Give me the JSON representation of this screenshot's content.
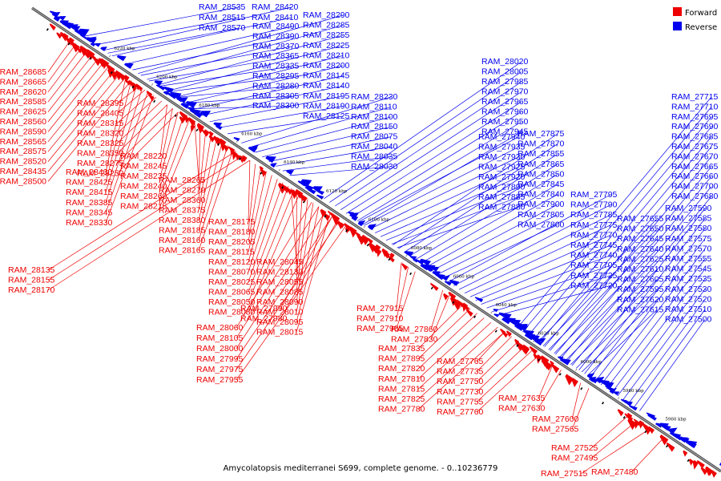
{
  "caption": "Amycolatopsis mediterranei S699, complete genome. - 0..10236779",
  "legend": [
    {
      "label": "Forward",
      "color": "#ee0000"
    },
    {
      "label": "Reverse",
      "color": "#0000ee"
    }
  ],
  "colors": {
    "forward": "#ee0000",
    "reverse": "#0000ee",
    "axis": "#555555"
  },
  "kbp_ticks": [
    {
      "label": "6220 kbp",
      "kbp": 6220
    },
    {
      "label": "6200 kbp",
      "kbp": 6200
    },
    {
      "label": "6180 kbp",
      "kbp": 6180
    },
    {
      "label": "6160 kbp",
      "kbp": 6160
    },
    {
      "label": "6140 kbp",
      "kbp": 6140
    },
    {
      "label": "6120 kbp",
      "kbp": 6120
    },
    {
      "label": "6100 kbp",
      "kbp": 6100
    },
    {
      "label": "6080 kbp",
      "kbp": 6080
    },
    {
      "label": "6060 kbp",
      "kbp": 6060
    },
    {
      "label": "6040 kbp",
      "kbp": 6040
    },
    {
      "label": "6020 kbp",
      "kbp": 6020
    },
    {
      "label": "6000 kbp",
      "kbp": 6000
    },
    {
      "label": "5980 kbp",
      "kbp": 5980
    },
    {
      "label": "5960 kbp",
      "kbp": 5960
    }
  ],
  "reverse_genes": [
    {
      "label": "RAM_28535"
    },
    {
      "label": "RAM_28515"
    },
    {
      "label": "RAM_28570"
    },
    {
      "label": "RAM_28420"
    },
    {
      "label": "RAM_28410"
    },
    {
      "label": "RAM_28490"
    },
    {
      "label": "RAM_28390"
    },
    {
      "label": "RAM_28370"
    },
    {
      "label": "RAM_28365"
    },
    {
      "label": "RAM_28335"
    },
    {
      "label": "RAM_28295"
    },
    {
      "label": "RAM_28280"
    },
    {
      "label": "RAM_28305"
    },
    {
      "label": "RAM_28300"
    },
    {
      "label": "RAM_28290"
    },
    {
      "label": "RAM_28285"
    },
    {
      "label": "RAM_28255"
    },
    {
      "label": "RAM_28225"
    },
    {
      "label": "RAM_28210"
    },
    {
      "label": "RAM_28200"
    },
    {
      "label": "RAM_28145"
    },
    {
      "label": "RAM_28140"
    },
    {
      "label": "RAM_28195"
    },
    {
      "label": "RAM_28190"
    },
    {
      "label": "RAM_28125"
    },
    {
      "label": "RAM_28230"
    },
    {
      "label": "RAM_28110"
    },
    {
      "label": "RAM_28100"
    },
    {
      "label": "RAM_28150"
    },
    {
      "label": "RAM_28075"
    },
    {
      "label": "RAM_28040"
    },
    {
      "label": "RAM_28035"
    },
    {
      "label": "RAM_28030"
    },
    {
      "label": "RAM_28020"
    },
    {
      "label": "RAM_28005"
    },
    {
      "label": "RAM_27985"
    },
    {
      "label": "RAM_27970"
    },
    {
      "label": "RAM_27965"
    },
    {
      "label": "RAM_27960"
    },
    {
      "label": "RAM_27950"
    },
    {
      "label": "RAM_27945"
    },
    {
      "label": "RAM_27940"
    },
    {
      "label": "RAM_27935"
    },
    {
      "label": "RAM_27930"
    },
    {
      "label": "RAM_27925"
    },
    {
      "label": "RAM_27920"
    },
    {
      "label": "RAM_27890"
    },
    {
      "label": "RAM_27885"
    },
    {
      "label": "RAM_27880"
    },
    {
      "label": "RAM_27875"
    },
    {
      "label": "RAM_27870"
    },
    {
      "label": "RAM_27855"
    },
    {
      "label": "RAM_27865"
    },
    {
      "label": "RAM_27850"
    },
    {
      "label": "RAM_27845"
    },
    {
      "label": "RAM_27840"
    },
    {
      "label": "RAM_27900"
    },
    {
      "label": "RAM_27805"
    },
    {
      "label": "RAM_27800"
    },
    {
      "label": "RAM_27795"
    },
    {
      "label": "RAM_27790"
    },
    {
      "label": "RAM_27785"
    },
    {
      "label": "RAM_27775"
    },
    {
      "label": "RAM_27770"
    },
    {
      "label": "RAM_27745"
    },
    {
      "label": "RAM_27740"
    },
    {
      "label": "RAM_27705"
    },
    {
      "label": "RAM_27725"
    },
    {
      "label": "RAM_27720"
    },
    {
      "label": "RAM_27715"
    },
    {
      "label": "RAM_27710"
    },
    {
      "label": "RAM_27695"
    },
    {
      "label": "RAM_27690"
    },
    {
      "label": "RAM_27685"
    },
    {
      "label": "RAM_27675"
    },
    {
      "label": "RAM_27670"
    },
    {
      "label": "RAM_27665"
    },
    {
      "label": "RAM_27660"
    },
    {
      "label": "RAM_27700"
    },
    {
      "label": "RAM_27680"
    },
    {
      "label": "RAM_27655"
    },
    {
      "label": "RAM_27650"
    },
    {
      "label": "RAM_27645"
    },
    {
      "label": "RAM_27640"
    },
    {
      "label": "RAM_27625"
    },
    {
      "label": "RAM_27610"
    },
    {
      "label": "RAM_27605"
    },
    {
      "label": "RAM_27595"
    },
    {
      "label": "RAM_27620"
    },
    {
      "label": "RAM_27615"
    },
    {
      "label": "RAM_27590"
    },
    {
      "label": "RAM_27585"
    },
    {
      "label": "RAM_27580"
    },
    {
      "label": "RAM_27575"
    },
    {
      "label": "RAM_27570"
    },
    {
      "label": "RAM_27555"
    },
    {
      "label": "RAM_27545"
    },
    {
      "label": "RAM_27535"
    },
    {
      "label": "RAM_27530"
    },
    {
      "label": "RAM_27520"
    },
    {
      "label": "RAM_27510"
    },
    {
      "label": "RAM_27500"
    }
  ],
  "forward_genes_left": [
    {
      "label": "RAM_28685"
    },
    {
      "label": "RAM_28665"
    },
    {
      "label": "RAM_28620"
    },
    {
      "label": "RAM_28585"
    },
    {
      "label": "RAM_28625"
    },
    {
      "label": "RAM_28560"
    },
    {
      "label": "RAM_28590"
    },
    {
      "label": "RAM_28565"
    },
    {
      "label": "RAM_28575"
    },
    {
      "label": "RAM_28520"
    },
    {
      "label": "RAM_28435"
    },
    {
      "label": "RAM_28500"
    },
    {
      "label": "RAM_28430"
    },
    {
      "label": "RAM_28425"
    },
    {
      "label": "RAM_28415"
    },
    {
      "label": "RAM_28385"
    },
    {
      "label": "RAM_28345"
    },
    {
      "label": "RAM_28330"
    },
    {
      "label": "RAM_28395"
    },
    {
      "label": "RAM_28405"
    },
    {
      "label": "RAM_28315"
    },
    {
      "label": "RAM_28320"
    },
    {
      "label": "RAM_28325"
    },
    {
      "label": "RAM_28350"
    },
    {
      "label": "RAM_28275"
    },
    {
      "label": "RAM_28250"
    },
    {
      "label": "RAM_28220"
    },
    {
      "label": "RAM_28245"
    },
    {
      "label": "RAM_28235"
    },
    {
      "label": "RAM_28240"
    },
    {
      "label": "RAM_28260"
    },
    {
      "label": "RAM_28215"
    },
    {
      "label": "RAM_28265"
    },
    {
      "label": "RAM_28270"
    },
    {
      "label": "RAM_28360"
    },
    {
      "label": "RAM_28375"
    },
    {
      "label": "RAM_28380"
    },
    {
      "label": "RAM_28185"
    },
    {
      "label": "RAM_28160"
    },
    {
      "label": "RAM_28165"
    },
    {
      "label": "RAM_28135"
    },
    {
      "label": "RAM_28155"
    },
    {
      "label": "RAM_28170"
    },
    {
      "label": "RAM_28175"
    },
    {
      "label": "RAM_28180"
    },
    {
      "label": "RAM_28205"
    },
    {
      "label": "RAM_28115"
    },
    {
      "label": "RAM_28120"
    },
    {
      "label": "RAM_28070"
    },
    {
      "label": "RAM_28025"
    },
    {
      "label": "RAM_28065"
    },
    {
      "label": "RAM_28050"
    },
    {
      "label": "RAM_28080"
    },
    {
      "label": "RAM_28045"
    },
    {
      "label": "RAM_28130"
    },
    {
      "label": "RAM_28055"
    },
    {
      "label": "RAM_28085"
    },
    {
      "label": "RAM_28090"
    },
    {
      "label": "RAM_28010"
    },
    {
      "label": "RAM_28095"
    },
    {
      "label": "RAM_28015"
    },
    {
      "label": "RAM_28060"
    },
    {
      "label": "RAM_28105"
    },
    {
      "label": "RAM_28000"
    },
    {
      "label": "RAM_27995"
    },
    {
      "label": "RAM_27975"
    },
    {
      "label": "RAM_27955"
    },
    {
      "label": "RAM_27990"
    },
    {
      "label": "RAM_27980"
    }
  ],
  "forward_genes_right": [
    {
      "label": "RAM_27915"
    },
    {
      "label": "RAM_27910"
    },
    {
      "label": "RAM_27905"
    },
    {
      "label": "RAM_27860"
    },
    {
      "label": "RAM_27830"
    },
    {
      "label": "RAM_27835"
    },
    {
      "label": "RAM_27895"
    },
    {
      "label": "RAM_27820"
    },
    {
      "label": "RAM_27810"
    },
    {
      "label": "RAM_27815"
    },
    {
      "label": "RAM_27825"
    },
    {
      "label": "RAM_27780"
    },
    {
      "label": "RAM_27765"
    },
    {
      "label": "RAM_27735"
    },
    {
      "label": "RAM_27750"
    },
    {
      "label": "RAM_27730"
    },
    {
      "label": "RAM_27755"
    },
    {
      "label": "RAM_27760"
    },
    {
      "label": "RAM_27635"
    },
    {
      "label": "RAM_27630"
    },
    {
      "label": "RAM_27600"
    },
    {
      "label": "RAM_27565"
    },
    {
      "label": "RAM_27525"
    },
    {
      "label": "RAM_27495"
    },
    {
      "label": "RAM_27515"
    },
    {
      "label": "RAM_27480"
    }
  ]
}
